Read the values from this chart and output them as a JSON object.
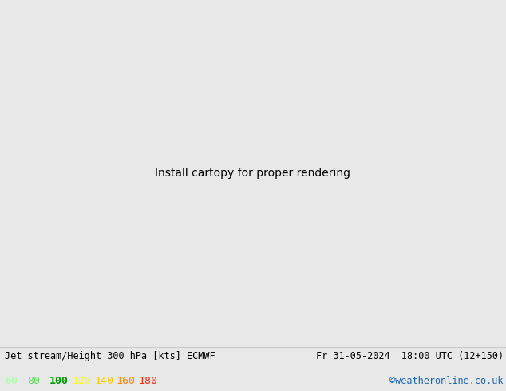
{
  "title_left": "Jet stream/Height 300 hPa [kts] ECMWF",
  "title_right": "Fr 31-05-2024  18:00 UTC (12+150)",
  "credit": "©weatheronline.co.uk",
  "legend_values": [
    60,
    80,
    100,
    120,
    140,
    160,
    180
  ],
  "legend_colors": [
    "#aaffaa",
    "#55dd55",
    "#009900",
    "#ffff00",
    "#ffcc00",
    "#ff8800",
    "#ff2200"
  ],
  "bg_color": "#e8e8e8",
  "ocean_color": "#e0e0e0",
  "land_color": "#c8e8b0",
  "land_color2": "#d8f0c0",
  "figsize": [
    6.34,
    4.9
  ],
  "dpi": 100,
  "extent": [
    -65,
    45,
    25,
    75
  ],
  "jet_60_color": "#bbf0bb",
  "jet_80_color": "#77dd77",
  "jet_100_color": "#33aa33",
  "jet_120_color": "#ffff44",
  "jet_140_color": "#ffcc00",
  "jet_160_color": "#ff8800",
  "jet_180_color": "#ff2200"
}
